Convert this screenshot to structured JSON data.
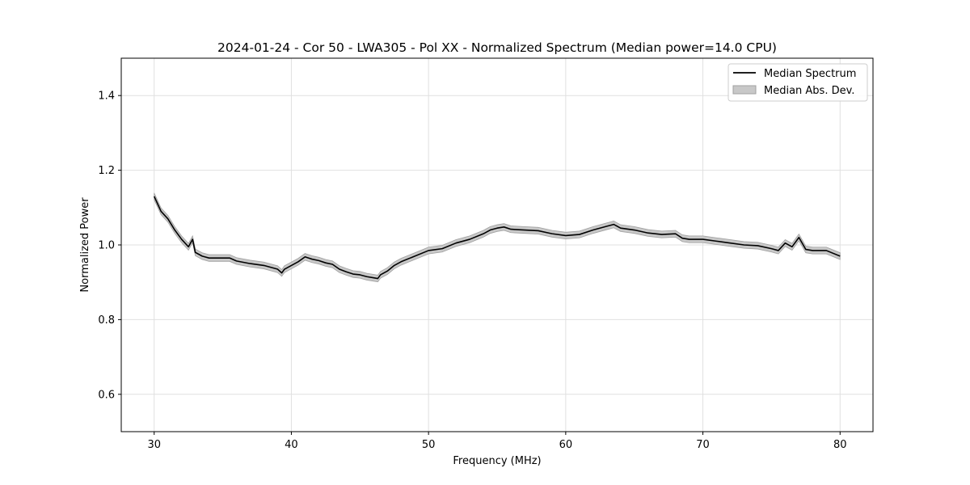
{
  "chart_data": {
    "type": "line",
    "title": "2024-01-24 - Cor 50 - LWA305 - Pol XX - Normalized Spectrum (Median power=14.0 CPU)",
    "xlabel": "Frequency (MHz)",
    "ylabel": "Normalized Power",
    "xlim": [
      27.6,
      82.4
    ],
    "ylim": [
      0.5,
      1.5
    ],
    "xticks": [
      30,
      40,
      50,
      60,
      70,
      80
    ],
    "yticks": [
      0.6,
      0.8,
      1.0,
      1.2,
      1.4
    ],
    "xtick_labels": [
      "30",
      "40",
      "50",
      "60",
      "70",
      "80"
    ],
    "ytick_labels": [
      "0.6",
      "0.8",
      "1.0",
      "1.2",
      "1.4"
    ],
    "grid": true,
    "legend_position": "top-right",
    "colors": {
      "line": "#000000",
      "band": "#c8c8c8",
      "band_edge": "#a0a0a0",
      "grid": "#e0e0e0"
    },
    "series": [
      {
        "name": "Median Spectrum",
        "kind": "line",
        "x": [
          30.0,
          30.5,
          31.0,
          31.5,
          32.0,
          32.5,
          32.8,
          33.0,
          33.5,
          34.0,
          35.0,
          35.5,
          36.0,
          37.0,
          38.0,
          39.0,
          39.3,
          39.5,
          40.0,
          40.5,
          41.0,
          41.5,
          42.0,
          42.5,
          43.0,
          43.5,
          44.0,
          44.5,
          45.0,
          45.5,
          46.0,
          46.3,
          46.5,
          47.0,
          47.5,
          48.0,
          49.0,
          50.0,
          51.0,
          52.0,
          53.0,
          54.0,
          54.5,
          55.0,
          55.5,
          56.0,
          57.0,
          58.0,
          59.0,
          60.0,
          61.0,
          62.0,
          63.0,
          63.5,
          64.0,
          65.0,
          66.0,
          67.0,
          68.0,
          68.5,
          69.0,
          70.0,
          71.0,
          72.0,
          73.0,
          74.0,
          75.0,
          75.5,
          76.0,
          76.5,
          77.0,
          77.5,
          78.0,
          79.0,
          80.0
        ],
        "y": [
          1.13,
          1.09,
          1.07,
          1.04,
          1.015,
          0.995,
          1.015,
          0.98,
          0.97,
          0.965,
          0.965,
          0.965,
          0.957,
          0.95,
          0.945,
          0.935,
          0.925,
          0.935,
          0.945,
          0.955,
          0.968,
          0.962,
          0.958,
          0.952,
          0.948,
          0.935,
          0.928,
          0.922,
          0.92,
          0.915,
          0.912,
          0.91,
          0.92,
          0.93,
          0.945,
          0.955,
          0.97,
          0.985,
          0.99,
          1.005,
          1.015,
          1.03,
          1.04,
          1.045,
          1.048,
          1.042,
          1.04,
          1.038,
          1.03,
          1.025,
          1.028,
          1.04,
          1.05,
          1.055,
          1.045,
          1.04,
          1.032,
          1.028,
          1.03,
          1.018,
          1.015,
          1.015,
          1.01,
          1.005,
          1.0,
          0.998,
          0.99,
          0.985,
          1.005,
          0.995,
          1.02,
          0.988,
          0.985,
          0.985,
          0.97
        ]
      },
      {
        "name": "Median Abs. Dev.",
        "kind": "band",
        "halfwidth": 0.009
      }
    ]
  }
}
